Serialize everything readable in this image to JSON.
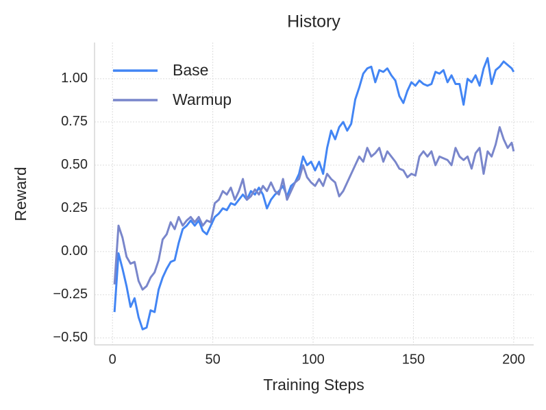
{
  "chart_data": {
    "type": "line",
    "title": "History",
    "xlabel": "Training Steps",
    "ylabel": "Reward",
    "x": [
      1,
      3,
      5,
      7,
      9,
      11,
      13,
      15,
      17,
      19,
      21,
      23,
      25,
      27,
      29,
      31,
      33,
      35,
      37,
      39,
      41,
      43,
      45,
      47,
      49,
      51,
      53,
      55,
      57,
      59,
      61,
      63,
      65,
      67,
      69,
      71,
      73,
      75,
      77,
      79,
      81,
      83,
      85,
      87,
      89,
      91,
      93,
      95,
      97,
      99,
      101,
      103,
      105,
      107,
      109,
      111,
      113,
      115,
      117,
      119,
      121,
      123,
      125,
      127,
      129,
      131,
      133,
      135,
      137,
      139,
      141,
      143,
      145,
      147,
      149,
      151,
      153,
      155,
      157,
      159,
      161,
      163,
      165,
      167,
      169,
      171,
      173,
      175,
      177,
      179,
      181,
      183,
      185,
      187,
      189,
      191,
      193,
      195,
      197,
      199,
      200
    ],
    "series": [
      {
        "name": "Base",
        "color": "#4285f4",
        "values": [
          -0.35,
          -0.01,
          -0.1,
          -0.2,
          -0.32,
          -0.27,
          -0.38,
          -0.45,
          -0.44,
          -0.34,
          -0.35,
          -0.22,
          -0.15,
          -0.1,
          -0.06,
          -0.05,
          0.05,
          0.13,
          0.15,
          0.18,
          0.15,
          0.18,
          0.12,
          0.1,
          0.15,
          0.2,
          0.22,
          0.25,
          0.24,
          0.28,
          0.27,
          0.3,
          0.33,
          0.3,
          0.35,
          0.33,
          0.37,
          0.33,
          0.25,
          0.3,
          0.33,
          0.35,
          0.38,
          0.32,
          0.38,
          0.4,
          0.45,
          0.55,
          0.5,
          0.52,
          0.47,
          0.52,
          0.45,
          0.6,
          0.7,
          0.65,
          0.72,
          0.75,
          0.7,
          0.74,
          0.88,
          0.95,
          1.03,
          1.06,
          1.07,
          0.98,
          1.05,
          1.04,
          1.06,
          1.02,
          0.99,
          0.9,
          0.86,
          0.93,
          0.98,
          0.96,
          0.99,
          0.97,
          0.96,
          0.97,
          1.04,
          1.03,
          1.05,
          0.98,
          1.02,
          0.97,
          0.97,
          0.85,
          1.0,
          0.98,
          1.02,
          0.96,
          1.06,
          1.12,
          0.97,
          1.05,
          1.07,
          1.1,
          1.08,
          1.06,
          1.04
        ]
      },
      {
        "name": "Warmup",
        "color": "#7986cb",
        "values": [
          -0.19,
          0.15,
          0.08,
          -0.03,
          -0.07,
          -0.06,
          -0.17,
          -0.22,
          -0.2,
          -0.15,
          -0.12,
          -0.05,
          0.07,
          0.1,
          0.17,
          0.13,
          0.2,
          0.15,
          0.18,
          0.2,
          0.17,
          0.2,
          0.15,
          0.18,
          0.17,
          0.28,
          0.3,
          0.35,
          0.33,
          0.37,
          0.3,
          0.35,
          0.42,
          0.3,
          0.32,
          0.36,
          0.33,
          0.38,
          0.35,
          0.4,
          0.35,
          0.33,
          0.42,
          0.3,
          0.35,
          0.4,
          0.42,
          0.5,
          0.43,
          0.4,
          0.38,
          0.42,
          0.38,
          0.45,
          0.42,
          0.4,
          0.32,
          0.35,
          0.4,
          0.45,
          0.5,
          0.55,
          0.52,
          0.6,
          0.55,
          0.57,
          0.6,
          0.52,
          0.58,
          0.55,
          0.52,
          0.48,
          0.47,
          0.43,
          0.45,
          0.44,
          0.55,
          0.58,
          0.55,
          0.58,
          0.5,
          0.55,
          0.54,
          0.53,
          0.5,
          0.6,
          0.55,
          0.53,
          0.55,
          0.48,
          0.57,
          0.6,
          0.45,
          0.58,
          0.55,
          0.62,
          0.72,
          0.65,
          0.6,
          0.63,
          0.58
        ]
      }
    ],
    "xlim": [
      -8.95,
      209.95
    ],
    "xticks": [
      0,
      50,
      100,
      150,
      200
    ],
    "ylim": [
      -0.54,
      1.21
    ],
    "yticks": [
      {
        "value": -0.5,
        "label": "−0.50"
      },
      {
        "value": -0.25,
        "label": "−0.25"
      },
      {
        "value": 0,
        "label": "0.00"
      },
      {
        "value": 0.25,
        "label": "0.25"
      },
      {
        "value": 0.5,
        "label": "0.50"
      },
      {
        "value": 0.75,
        "label": "0.75"
      },
      {
        "value": 1,
        "label": "1.00"
      }
    ],
    "grid": true,
    "legend": "upper-left"
  }
}
